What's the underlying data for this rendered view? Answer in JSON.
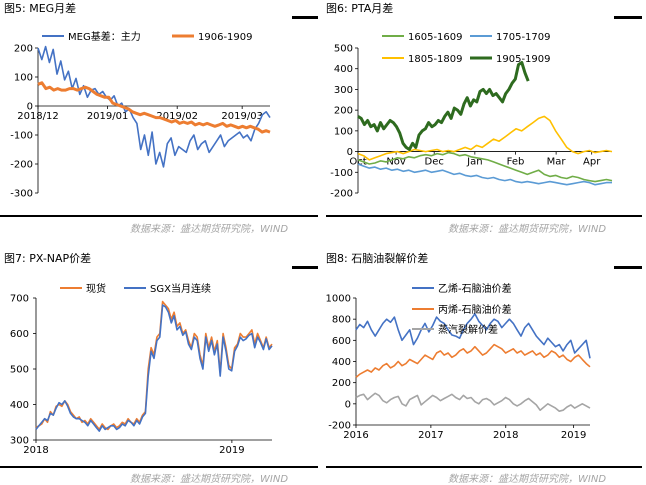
{
  "panels": [
    {
      "title": "图5: MEG月差"
    },
    {
      "title": "图6: PTA月差"
    },
    {
      "title": "图7: PX-NAP价差"
    },
    {
      "title": "图8: 石脑油裂解价差"
    }
  ],
  "sources": [
    "数据来源：盛达期货研究院，WIND",
    "数据来源：盛达期货研究院，WIND"
  ],
  "chart_data": [
    {
      "type": "line",
      "title": "图5: MEG月差",
      "xlabel": "",
      "ylabel": "",
      "ylim": [
        -300,
        200
      ],
      "yticks": [
        "200",
        "100",
        "0",
        "-100",
        "-200",
        "-300"
      ],
      "xticks": [
        "2018/12",
        "2019/01",
        "2019/02",
        "2019/03"
      ],
      "legend": "top",
      "series": [
        {
          "name": "MEG基差：主力",
          "color": "#4472c4",
          "xrange": [
            0,
            100
          ],
          "values": [
            200,
            160,
            205,
            150,
            195,
            110,
            155,
            90,
            120,
            60,
            95,
            40,
            70,
            30,
            55,
            60,
            40,
            50,
            30,
            20,
            35,
            0,
            10,
            -20,
            -10,
            -40,
            -60,
            -150,
            -100,
            -170,
            -90,
            -200,
            -160,
            -210,
            -130,
            -110,
            -170,
            -140,
            -150,
            -160,
            -120,
            -100,
            -150,
            -130,
            -120,
            -160,
            -140,
            -120,
            -100,
            -140,
            -120,
            -110,
            -100,
            -90,
            -110,
            -100,
            -120,
            -80,
            -60,
            -30,
            -20,
            -40
          ]
        },
        {
          "name": "1906-1909",
          "color": "#ed7d31",
          "xrange": [
            0,
            100
          ],
          "values": [
            75,
            80,
            60,
            65,
            55,
            60,
            55,
            55,
            60,
            60,
            55,
            60,
            65,
            60,
            50,
            40,
            35,
            30,
            30,
            10,
            5,
            0,
            -5,
            -10,
            -20,
            -25,
            -30,
            -25,
            -30,
            -35,
            -40,
            -40,
            -45,
            -50,
            -55,
            -50,
            -60,
            -55,
            -60,
            -55,
            -65,
            -60,
            -65,
            -60,
            -65,
            -70,
            -65,
            -60,
            -70,
            -65,
            -70,
            -75,
            -70,
            -75,
            -70,
            -75,
            -80,
            -90,
            -85,
            -90
          ]
        }
      ]
    },
    {
      "type": "line",
      "title": "图6: PTA月差",
      "xlabel": "",
      "ylabel": "",
      "ylim": [
        -200,
        500
      ],
      "yticks": [
        "500",
        "400",
        "300",
        "200",
        "100",
        "0",
        "-100",
        "-200"
      ],
      "xticks": [
        "Oct",
        "Nov",
        "Dec",
        "Jan",
        "Feb",
        "Mar",
        "Apr"
      ],
      "legend": "top",
      "series": [
        {
          "name": "1605-1609",
          "color": "#70ad47",
          "xrange": [
            0,
            100
          ],
          "values": [
            -40,
            -50,
            -60,
            -55,
            -45,
            -50,
            -40,
            -30,
            -35,
            -25,
            -30,
            -20,
            -15,
            -20,
            -10,
            -15,
            -5,
            -10,
            -20,
            -15,
            -25,
            -30,
            -35,
            -40,
            -50,
            -60,
            -70,
            -80,
            -90,
            -100,
            -110,
            -100,
            -90,
            -110,
            -120,
            -115,
            -125,
            -130,
            -120,
            -125,
            -135,
            -140,
            -145,
            -140,
            -135,
            -140
          ]
        },
        {
          "name": "1705-1709",
          "color": "#5b9bd5",
          "xrange": [
            0,
            100
          ],
          "values": [
            -60,
            -70,
            -80,
            -75,
            -85,
            -80,
            -90,
            -85,
            -95,
            -90,
            -100,
            -95,
            -90,
            -100,
            -95,
            -90,
            -100,
            -110,
            -105,
            -115,
            -120,
            -115,
            -125,
            -130,
            -125,
            -135,
            -140,
            -135,
            -145,
            -150,
            -145,
            -150,
            -155,
            -150,
            -145,
            -150,
            -155,
            -160,
            -155,
            -150,
            -145,
            -150,
            -160,
            -155,
            -150,
            -150
          ]
        },
        {
          "name": "1805-1809",
          "color": "#ffc000",
          "xrange": [
            0,
            100
          ],
          "values": [
            -10,
            -20,
            -40,
            -30,
            -20,
            -10,
            -5,
            0,
            -10,
            0,
            10,
            5,
            0,
            5,
            10,
            0,
            5,
            0,
            10,
            20,
            10,
            30,
            20,
            40,
            60,
            50,
            70,
            90,
            110,
            100,
            120,
            140,
            160,
            170,
            150,
            100,
            60,
            20,
            0,
            -10,
            0,
            5,
            -5,
            0,
            5,
            0
          ]
        },
        {
          "name": "1905-1909",
          "color": "#2e6b1f",
          "xrange": [
            0,
            67
          ],
          "values": [
            170,
            160,
            130,
            150,
            120,
            130,
            100,
            140,
            110,
            130,
            150,
            140,
            120,
            90,
            40,
            20,
            10,
            40,
            20,
            80,
            100,
            110,
            140,
            120,
            130,
            150,
            140,
            170,
            190,
            160,
            210,
            200,
            180,
            230,
            260,
            220,
            250,
            240,
            290,
            300,
            280,
            300,
            270,
            280,
            260,
            240,
            280,
            300,
            330,
            350,
            420,
            430,
            380,
            340
          ]
        }
      ]
    },
    {
      "type": "line",
      "title": "图7: PX-NAP价差",
      "xlabel": "",
      "ylabel": "",
      "ylim": [
        300,
        700
      ],
      "yticks": [
        "700",
        "600",
        "500",
        "400",
        "300"
      ],
      "xticks": [
        "2018",
        "2019"
      ],
      "legend": "top",
      "series": [
        {
          "name": "现货",
          "color": "#ed7d31",
          "xrange": [
            0,
            100
          ],
          "values": [
            335,
            340,
            345,
            360,
            350,
            380,
            370,
            395,
            400,
            395,
            410,
            400,
            380,
            370,
            360,
            365,
            350,
            355,
            345,
            360,
            350,
            340,
            330,
            345,
            335,
            330,
            340,
            345,
            335,
            340,
            350,
            345,
            360,
            350,
            345,
            360,
            350,
            370,
            380,
            500,
            560,
            540,
            590,
            600,
            690,
            680,
            670,
            640,
            660,
            620,
            630,
            600,
            610,
            580,
            560,
            600,
            590,
            540,
            510,
            600,
            560,
            590,
            550,
            580,
            490,
            600,
            560,
            510,
            500,
            560,
            570,
            600,
            590,
            590,
            600,
            610,
            570,
            600,
            580,
            560,
            590,
            560,
            570
          ]
        },
        {
          "name": "SGX当月连续",
          "color": "#4472c4",
          "xrange": [
            0,
            100
          ],
          "values": [
            330,
            340,
            350,
            360,
            355,
            375,
            370,
            390,
            405,
            400,
            410,
            395,
            375,
            365,
            360,
            360,
            355,
            350,
            340,
            355,
            345,
            335,
            325,
            340,
            330,
            335,
            340,
            340,
            330,
            335,
            345,
            340,
            355,
            350,
            340,
            355,
            345,
            365,
            375,
            480,
            550,
            530,
            580,
            590,
            680,
            675,
            660,
            630,
            650,
            610,
            620,
            595,
            605,
            570,
            555,
            590,
            580,
            530,
            500,
            590,
            550,
            580,
            540,
            570,
            480,
            590,
            550,
            500,
            495,
            550,
            565,
            590,
            580,
            585,
            595,
            600,
            560,
            590,
            575,
            555,
            585,
            555,
            565
          ]
        }
      ]
    },
    {
      "type": "line",
      "title": "图8: 石脑油裂解价差",
      "xlabel": "",
      "ylabel": "",
      "ylim": [
        -200,
        1000
      ],
      "yticks": [
        "1000",
        "800",
        "600",
        "400",
        "200",
        "0",
        "-200"
      ],
      "xticks": [
        "2016",
        "2017",
        "2018",
        "2019"
      ],
      "legend": "top",
      "series": [
        {
          "name": "乙烯-石脑油价差",
          "color": "#4472c4",
          "xrange": [
            0,
            100
          ],
          "values": [
            700,
            750,
            720,
            780,
            700,
            640,
            700,
            760,
            800,
            770,
            820,
            700,
            600,
            650,
            700,
            560,
            620,
            700,
            760,
            680,
            740,
            820,
            780,
            760,
            700,
            650,
            640,
            620,
            700,
            760,
            800,
            850,
            780,
            740,
            700,
            760,
            800,
            780,
            720,
            760,
            800,
            760,
            700,
            640,
            720,
            760,
            700,
            640,
            600,
            560,
            620,
            580,
            540,
            560,
            500,
            560,
            600,
            480,
            520,
            560,
            600,
            430
          ]
        },
        {
          "name": "丙烯-石脑油价差",
          "color": "#ed7d31",
          "xrange": [
            0,
            100
          ],
          "values": [
            250,
            280,
            300,
            320,
            300,
            340,
            320,
            360,
            380,
            340,
            360,
            400,
            360,
            380,
            420,
            400,
            380,
            420,
            460,
            440,
            420,
            480,
            500,
            460,
            480,
            440,
            460,
            500,
            520,
            480,
            500,
            540,
            500,
            460,
            480,
            520,
            560,
            540,
            520,
            480,
            500,
            520,
            480,
            500,
            460,
            480,
            500,
            460,
            480,
            440,
            460,
            500,
            480,
            440,
            460,
            420,
            400,
            440,
            460,
            420,
            380,
            350
          ]
        },
        {
          "name": "蒸汽裂解价差",
          "color": "#a5a5a5",
          "xrange": [
            0,
            100
          ],
          "values": [
            60,
            80,
            90,
            40,
            70,
            100,
            80,
            30,
            10,
            40,
            60,
            70,
            0,
            -20,
            40,
            60,
            80,
            -10,
            20,
            50,
            80,
            60,
            30,
            50,
            70,
            90,
            60,
            40,
            80,
            50,
            60,
            20,
            0,
            40,
            50,
            30,
            -10,
            10,
            30,
            60,
            40,
            0,
            -20,
            0,
            30,
            50,
            20,
            -10,
            -60,
            -30,
            0,
            -20,
            -40,
            -70,
            -60,
            -30,
            -10,
            -40,
            -20,
            0,
            -20,
            -40
          ]
        }
      ]
    }
  ]
}
